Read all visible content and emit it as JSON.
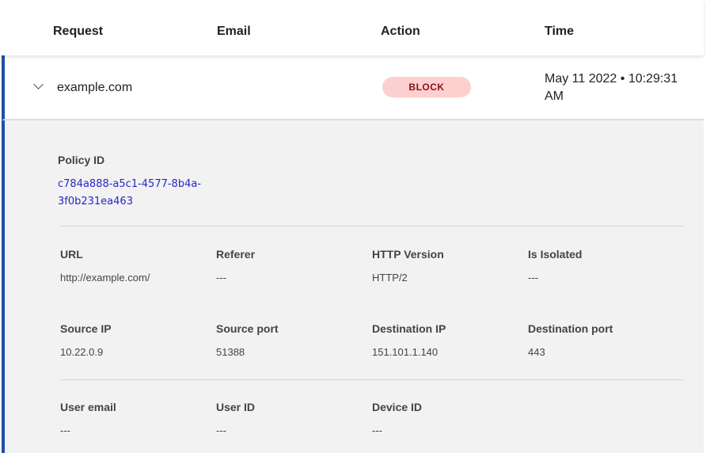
{
  "columns": [
    "Request",
    "Email",
    "Action",
    "Time"
  ],
  "row": {
    "request": "example.com",
    "action": "BLOCK",
    "time": "May 11 2022 • 10:29:31 AM"
  },
  "policy": {
    "label": "Policy ID",
    "value": "c784a888-a5c1-4577-8b4a-3f0b231ea463"
  },
  "fields": [
    {
      "label": "URL",
      "value": "http://example.com/"
    },
    {
      "label": "Referer",
      "value": "---"
    },
    {
      "label": "HTTP Version",
      "value": "HTTP/2"
    },
    {
      "label": "Is Isolated",
      "value": "---"
    },
    {
      "label": "Source IP",
      "value": "10.22.0.9"
    },
    {
      "label": "Source port",
      "value": "51388"
    },
    {
      "label": "Destination IP",
      "value": "151.101.1.140"
    },
    {
      "label": "Destination port",
      "value": "443"
    },
    {
      "label": "User email",
      "value": "---"
    },
    {
      "label": "User ID",
      "value": "---"
    },
    {
      "label": "Device ID",
      "value": "---"
    }
  ],
  "colors": {
    "accent": "#1f4fa8",
    "block_bg": "#fdd0d0",
    "block_text": "#8a1010",
    "link": "#2727c8"
  }
}
